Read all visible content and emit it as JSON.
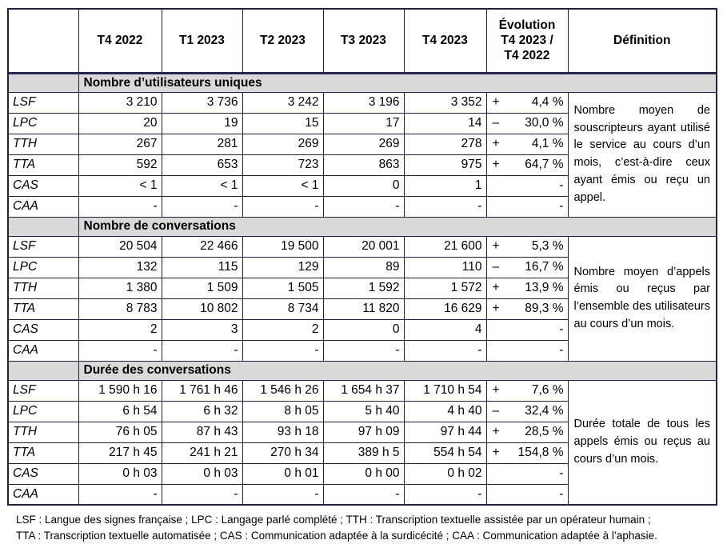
{
  "colors": {
    "border_navy": "#20203f",
    "header_separator_navy": "#252350",
    "section_band_gray": "#d9d9d9",
    "text": "#010101",
    "background": "#ffffff"
  },
  "header": {
    "quarters": [
      "T4 2022",
      "T1 2023",
      "T2 2023",
      "T3 2023",
      "T4 2023"
    ],
    "evolution_lines": [
      "Évolution",
      "T4 2023 /",
      "T4 2022"
    ],
    "definition": "Définition"
  },
  "sections": [
    {
      "title": "Nombre d’utilisateurs uniques",
      "definition": "Nombre moyen de souscripteurs ayant utilisé le service au cours d’un mois, c’est-à-dire ceux ayant émis ou reçu un appel.",
      "rows": [
        {
          "label": "LSF",
          "values": [
            "3 210",
            "3 736",
            "3 242",
            "3 196",
            "3 352"
          ],
          "evolution": {
            "sign": "+",
            "value": "4,4 %"
          }
        },
        {
          "label": "LPC",
          "values": [
            "20",
            "19",
            "15",
            "17",
            "14"
          ],
          "evolution": {
            "sign": "–",
            "value": "30,0 %"
          }
        },
        {
          "label": "TTH",
          "values": [
            "267",
            "281",
            "269",
            "269",
            "278"
          ],
          "evolution": {
            "sign": "+",
            "value": "4,1 %"
          }
        },
        {
          "label": "TTA",
          "values": [
            "592",
            "653",
            "723",
            "863",
            "975"
          ],
          "evolution": {
            "sign": "+",
            "value": "64,7 %"
          }
        },
        {
          "label": "CAS",
          "values": [
            "< 1",
            "< 1",
            "< 1",
            "0",
            "1"
          ],
          "evolution": {
            "sign": "",
            "value": "-"
          }
        },
        {
          "label": "CAA",
          "values": [
            "-",
            "-",
            "-",
            "-",
            "-"
          ],
          "evolution": {
            "sign": "",
            "value": "-"
          }
        }
      ]
    },
    {
      "title": "Nombre de conversations",
      "definition": "Nombre moyen d’appels émis ou reçus par l’ensemble des utilisateurs au cours d’un mois.",
      "rows": [
        {
          "label": "LSF",
          "values": [
            "20 504",
            "22 466",
            "19 500",
            "20 001",
            "21 600"
          ],
          "evolution": {
            "sign": "+",
            "value": "5,3 %"
          }
        },
        {
          "label": "LPC",
          "values": [
            "132",
            "115",
            "129",
            "89",
            "110"
          ],
          "evolution": {
            "sign": "–",
            "value": "16,7 %"
          }
        },
        {
          "label": "TTH",
          "values": [
            "1 380",
            "1 509",
            "1 505",
            "1 592",
            "1 572"
          ],
          "evolution": {
            "sign": "+",
            "value": "13,9 %"
          }
        },
        {
          "label": "TTA",
          "values": [
            "8 783",
            "10 802",
            "8 734",
            "11 820",
            "16 629"
          ],
          "evolution": {
            "sign": "+",
            "value": "89,3 %"
          }
        },
        {
          "label": "CAS",
          "values": [
            "2",
            "3",
            "2",
            "0",
            "4"
          ],
          "evolution": {
            "sign": "",
            "value": "-"
          }
        },
        {
          "label": "CAA",
          "values": [
            "-",
            "-",
            "-",
            "-",
            "-"
          ],
          "evolution": {
            "sign": "",
            "value": "-"
          }
        }
      ]
    },
    {
      "title": "Durée des conversations",
      "definition": "Durée totale de tous les appels émis ou reçus au cours d’un mois.",
      "rows": [
        {
          "label": "LSF",
          "values": [
            "1 590 h 16",
            "1 761 h 46",
            "1 546 h 26",
            "1 654 h 37",
            "1 710 h 54"
          ],
          "evolution": {
            "sign": "+",
            "value": "7,6 %"
          }
        },
        {
          "label": "LPC",
          "values": [
            "6 h 54",
            "6 h 32",
            "8 h 05",
            "5 h 40",
            "4 h 40"
          ],
          "evolution": {
            "sign": "–",
            "value": "32,4 %"
          }
        },
        {
          "label": "TTH",
          "values": [
            "76 h 05",
            "87 h 43",
            "93 h 18",
            "97 h 09",
            "97 h 44"
          ],
          "evolution": {
            "sign": "+",
            "value": "28,5 %"
          }
        },
        {
          "label": "TTA",
          "values": [
            "217 h 45",
            "241 h 21",
            "270 h 34",
            "389 h 5",
            "554 h 54"
          ],
          "evolution": {
            "sign": "+",
            "value": "154,8 %"
          }
        },
        {
          "label": "CAS",
          "values": [
            "0 h 03",
            "0 h 03",
            "0 h 01",
            "0 h 00",
            "0 h 02"
          ],
          "evolution": {
            "sign": "",
            "value": "-"
          }
        },
        {
          "label": "CAA",
          "values": [
            "-",
            "-",
            "-",
            "-",
            "-"
          ],
          "evolution": {
            "sign": "",
            "value": "-"
          }
        }
      ]
    }
  ],
  "footer": {
    "lines": [
      "LSF : Langue des signes française ; LPC : Langage parlé complété ; TTH : Transcription textuelle assistée par un opérateur humain ;",
      "TTA : Transcription textuelle automatisée ; CAS : Communication adaptée à la surdicécité ; CAA : Communication adaptée à l’aphasie."
    ]
  }
}
